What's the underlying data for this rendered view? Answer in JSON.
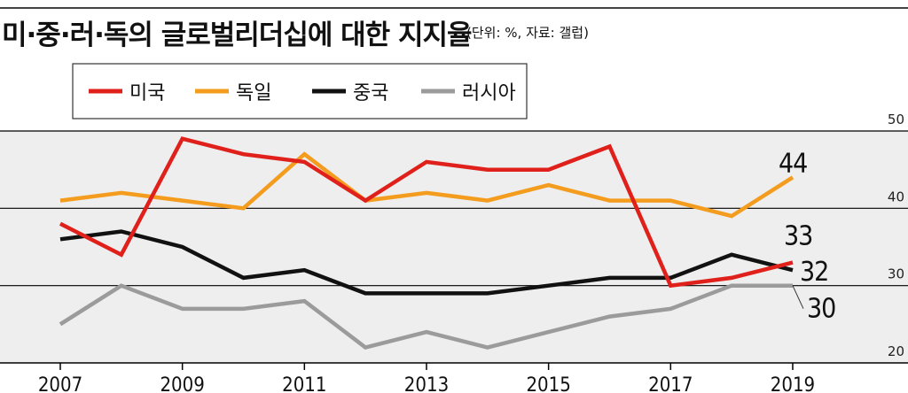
{
  "chart_data": {
    "type": "line",
    "title": "미·중·러·독의 글로벌리더십에 대한 지지율",
    "subtitle": "(단위: %, 자료: 갤럽)",
    "x": [
      2007,
      2008,
      2009,
      2010,
      2011,
      2012,
      2013,
      2014,
      2015,
      2016,
      2017,
      2018,
      2019
    ],
    "x_tick_labels": [
      "2007",
      "2009",
      "2011",
      "2013",
      "2015",
      "2017",
      "2019"
    ],
    "y_tick_labels": [
      "50",
      "40",
      "30",
      "20"
    ],
    "ylim": [
      20,
      50
    ],
    "grid": "horizontal",
    "legend_position": "top-left",
    "series": [
      {
        "name": "미국",
        "color": "#e0201b",
        "values": [
          38,
          34,
          49,
          47,
          46,
          41,
          46,
          45,
          45,
          48,
          30,
          31,
          33
        ]
      },
      {
        "name": "독일",
        "color": "#f39c1e",
        "values": [
          41,
          42,
          41,
          40,
          47,
          41,
          42,
          41,
          43,
          41,
          41,
          39,
          44
        ]
      },
      {
        "name": "중국",
        "color": "#111111",
        "values": [
          36,
          37,
          35,
          31,
          32,
          29,
          29,
          29,
          30,
          31,
          31,
          34,
          32
        ]
      },
      {
        "name": "러시아",
        "color": "#9b9b9b",
        "values": [
          25,
          30,
          27,
          27,
          28,
          22,
          24,
          22,
          24,
          26,
          27,
          30,
          30
        ]
      }
    ],
    "end_labels": [
      "44",
      "33",
      "32",
      "30"
    ]
  }
}
